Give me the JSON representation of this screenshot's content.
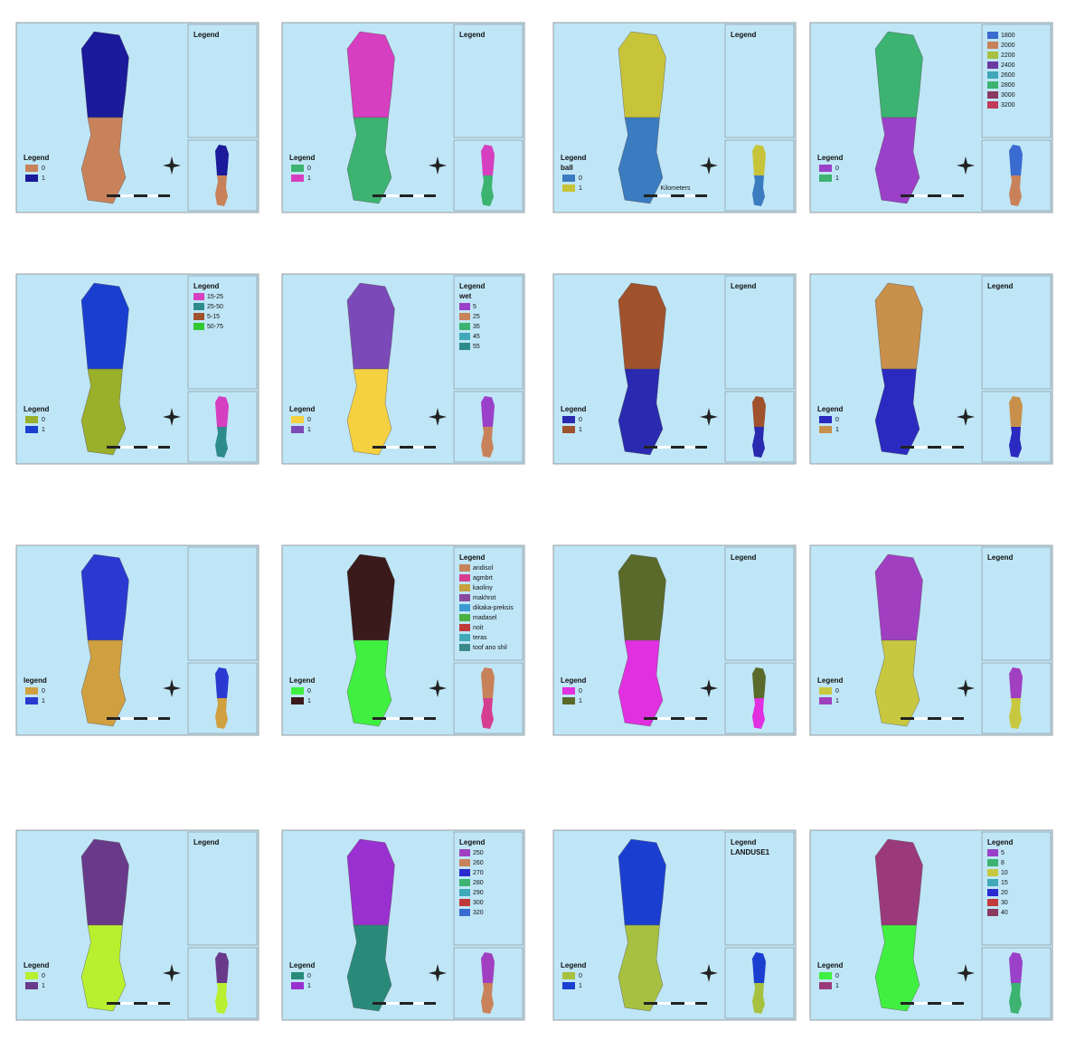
{
  "panels": [
    {
      "legend": {
        "title": "Legend"
      },
      "bottom": {
        "title": "Legend",
        "items": [
          {
            "label": "0",
            "color": "#c8825a"
          },
          {
            "label": "1",
            "color": "#1a1a9a"
          }
        ]
      }
    },
    {
      "legend": {
        "title": "Legend"
      },
      "bottom": {
        "title": "Legend",
        "items": [
          {
            "label": "0",
            "color": "#3cb371"
          },
          {
            "label": "1",
            "color": "#d63fbf"
          }
        ]
      }
    },
    {
      "legend": {
        "title": "Legend"
      },
      "scale": "Kilometers",
      "bottom": {
        "title": "Legend",
        "subtitle": "ball",
        "items": [
          {
            "label": "0",
            "color": "#3b7bbf"
          },
          {
            "label": "1",
            "color": "#c8c43a"
          }
        ]
      }
    },
    {
      "legend": {
        "items": [
          {
            "label": "1800",
            "color": "#3a6bd0"
          },
          {
            "label": "2000",
            "color": "#c8825a"
          },
          {
            "label": "2200",
            "color": "#a8c040"
          },
          {
            "label": "2400",
            "color": "#6a3aa0"
          },
          {
            "label": "2600",
            "color": "#40a8b8"
          },
          {
            "label": "2800",
            "color": "#3cb371"
          },
          {
            "label": "3000",
            "color": "#8a3a60"
          },
          {
            "label": "3200",
            "color": "#c03a5a"
          }
        ]
      },
      "bottom": {
        "title": "Legend",
        "items": [
          {
            "label": "0",
            "color": "#9b40c8"
          },
          {
            "label": "1",
            "color": "#3cb371"
          }
        ]
      }
    },
    {
      "legend": {
        "title": "Legend",
        "items": [
          {
            "label": "15-25",
            "color": "#d63fbf"
          },
          {
            "label": "25-50",
            "color": "#2e8b8b"
          },
          {
            "label": "5-15",
            "color": "#a0522d"
          },
          {
            "label": "50-75",
            "color": "#32c832"
          }
        ]
      },
      "bottom": {
        "title": "Legend",
        "items": [
          {
            "label": "0",
            "color": "#9aaf2a"
          },
          {
            "label": "1",
            "color": "#1a3fd0"
          }
        ]
      }
    },
    {
      "legend": {
        "title": "Legend",
        "subtitle": "wet",
        "items": [
          {
            "label": "5",
            "color": "#9b40c8"
          },
          {
            "label": "25",
            "color": "#c8825a"
          },
          {
            "label": "35",
            "color": "#3cb371"
          },
          {
            "label": "45",
            "color": "#40a8b8"
          },
          {
            "label": "55",
            "color": "#2e8b8b"
          }
        ]
      },
      "bottom": {
        "title": "Legend",
        "items": [
          {
            "label": "0",
            "color": "#f5d040"
          },
          {
            "label": "1",
            "color": "#7b4ab8"
          }
        ]
      }
    },
    {
      "legend": {
        "title": "Legend"
      },
      "bottom": {
        "title": "Legend",
        "items": [
          {
            "label": "0",
            "color": "#2a2ab0"
          },
          {
            "label": "1",
            "color": "#a0522d"
          }
        ]
      }
    },
    {
      "legend": {
        "title": "Legend"
      },
      "bottom": {
        "title": "Legend",
        "items": [
          {
            "label": "0",
            "color": "#2a2ac0"
          },
          {
            "label": "1",
            "color": "#c8904a"
          }
        ]
      }
    },
    {
      "legend": {},
      "bottom": {
        "title": "legend",
        "items": [
          {
            "label": "0",
            "color": "#d0a040"
          },
          {
            "label": "1",
            "color": "#2a3ad0"
          }
        ]
      }
    },
    {
      "legend": {
        "title": "Legend",
        "items": [
          {
            "label": "andisol",
            "color": "#c8825a"
          },
          {
            "label": "agmbrt",
            "color": "#d63f8f"
          },
          {
            "label": "kaoliny",
            "color": "#c8a040"
          },
          {
            "label": "makhrot",
            "color": "#8a4aa0"
          },
          {
            "label": "dikaka-preksis",
            "color": "#3a9bd0"
          },
          {
            "label": "madasel",
            "color": "#4ab040"
          },
          {
            "label": "noit",
            "color": "#c03a3a"
          },
          {
            "label": "teras",
            "color": "#40a8b8"
          },
          {
            "label": "toof ano shil",
            "color": "#3a8a8a"
          }
        ]
      },
      "bottom": {
        "title": "Legend",
        "items": [
          {
            "label": "0",
            "color": "#40f040"
          },
          {
            "label": "1",
            "color": "#3a1a1a"
          }
        ]
      }
    },
    {
      "legend": {
        "title": "Legend"
      },
      "bottom": {
        "title": "Legend",
        "items": [
          {
            "label": "0",
            "color": "#e030e0"
          },
          {
            "label": "1",
            "color": "#5a6a2a"
          }
        ]
      }
    },
    {
      "legend": {
        "title": "Legend"
      },
      "bottom": {
        "title": "Legend",
        "items": [
          {
            "label": "0",
            "color": "#c8c840"
          },
          {
            "label": "1",
            "color": "#a040c0"
          }
        ]
      }
    },
    {
      "legend": {
        "title": "Legend"
      },
      "bottom": {
        "title": "Legend",
        "items": [
          {
            "label": "0",
            "color": "#b8f030"
          },
          {
            "label": "1",
            "color": "#6a3a8a"
          }
        ]
      }
    },
    {
      "legend": {
        "title": "Legend",
        "items": [
          {
            "label": "250",
            "color": "#a040c0"
          },
          {
            "label": "260",
            "color": "#c8825a"
          },
          {
            "label": "270",
            "color": "#2a2ad0"
          },
          {
            "label": "280",
            "color": "#3cb371"
          },
          {
            "label": "290",
            "color": "#40a8b8"
          },
          {
            "label": "300",
            "color": "#c03a3a"
          },
          {
            "label": "320",
            "color": "#3a6bd0"
          }
        ]
      },
      "bottom": {
        "title": "Legend",
        "items": [
          {
            "label": "0",
            "color": "#2a8a7a"
          },
          {
            "label": "1",
            "color": "#9b30d0"
          }
        ]
      }
    },
    {
      "legend": {
        "title": "Legend",
        "subtitle": "LANDUSE1"
      },
      "bottom": {
        "title": "Legend",
        "items": [
          {
            "label": "0",
            "color": "#a8c040"
          },
          {
            "label": "1",
            "color": "#1a3fd0"
          }
        ]
      }
    },
    {
      "legend": {
        "title": "Legend",
        "items": [
          {
            "label": "5",
            "color": "#9b40c8"
          },
          {
            "label": "8",
            "color": "#3cb371"
          },
          {
            "label": "10",
            "color": "#c8c840"
          },
          {
            "label": "15",
            "color": "#40a8b8"
          },
          {
            "label": "20",
            "color": "#2a2ad0"
          },
          {
            "label": "30",
            "color": "#c03a3a"
          },
          {
            "label": "40",
            "color": "#8a3a60"
          }
        ]
      },
      "bottom": {
        "title": "Legend",
        "items": [
          {
            "label": "0",
            "color": "#40f040"
          },
          {
            "label": "1",
            "color": "#9b3a7a"
          }
        ]
      }
    }
  ]
}
